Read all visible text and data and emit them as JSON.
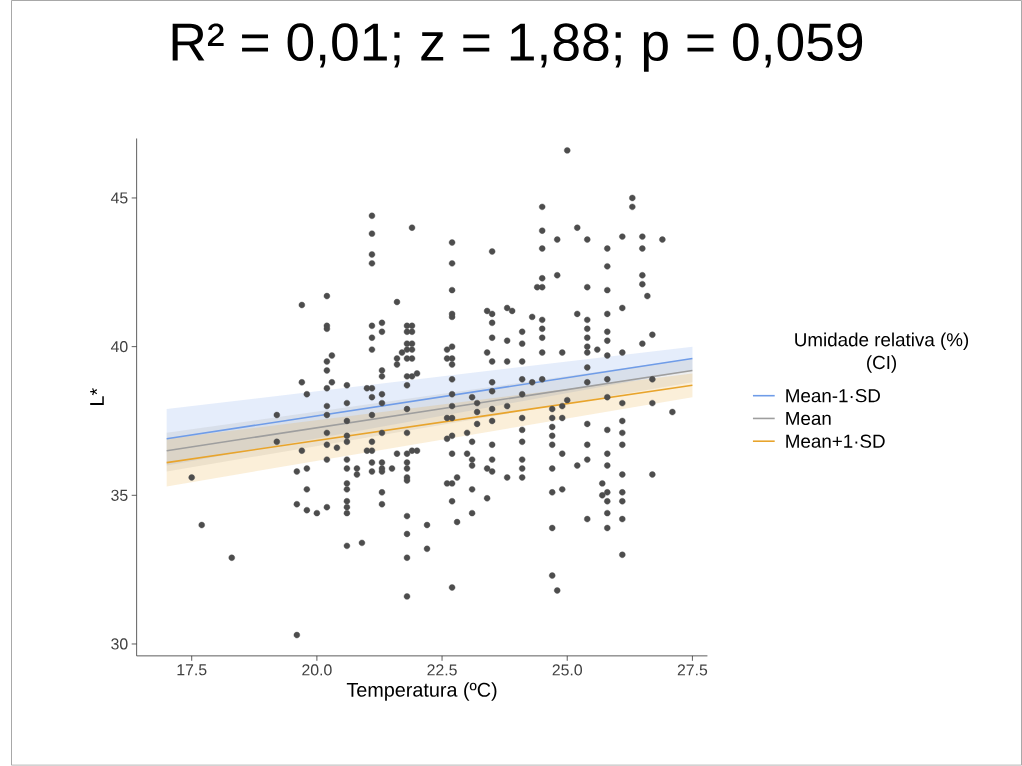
{
  "chart_data": {
    "type": "scatter",
    "title": "R² = 0,01; z = 1,88; p = 0,059",
    "xlabel": "Temperatura (ºC)",
    "ylabel": "L*",
    "legend_title": "Umidade relativa (%) (CI)",
    "legend": "right",
    "xlim": [
      16.4,
      27.8
    ],
    "ylim": [
      29.6,
      47.0
    ],
    "xticks": [
      {
        "value": 17.5,
        "label": "17.5"
      },
      {
        "value": 20,
        "label": "20.0"
      },
      {
        "value": 22.5,
        "label": "22.5"
      },
      {
        "value": 25,
        "label": "25.0"
      },
      {
        "value": 27.5,
        "label": "27.5"
      }
    ],
    "yticks": [
      30,
      35,
      40,
      45
    ],
    "series": [
      {
        "type": "scatter",
        "color": "#4d4d4d",
        "marker": "circle",
        "x": [
          17.5,
          17.7,
          18.3,
          19.2,
          19.2,
          19.6,
          19.7,
          19.7,
          19.6,
          19.6,
          19.8,
          19.8,
          19.8,
          19.8,
          20.0,
          19.7,
          20.2,
          20.2,
          20.2,
          20.2,
          20.2,
          20.2,
          20.2,
          20.2,
          20.2,
          20.2,
          20.2,
          20.2,
          20.3,
          20.3,
          20.4,
          20.6,
          20.6,
          20.6,
          20.6,
          20.6,
          20.6,
          20.6,
          20.6,
          20.6,
          20.6,
          20.6,
          20.6,
          20.6,
          20.8,
          20.8,
          20.9,
          21.0,
          21.0,
          21.1,
          21.1,
          21.1,
          21.1,
          21.1,
          21.1,
          21.1,
          21.1,
          21.1,
          21.1,
          21.1,
          21.1,
          21.1,
          21.1,
          21.3,
          21.3,
          21.3,
          21.3,
          21.3,
          21.3,
          21.3,
          21.3,
          21.3,
          21.3,
          21.3,
          21.3,
          21.5,
          21.6,
          21.6,
          21.6,
          21.6,
          21.7,
          21.8,
          21.8,
          21.8,
          21.8,
          21.8,
          21.8,
          21.8,
          21.8,
          21.8,
          21.8,
          21.8,
          21.8,
          21.8,
          21.8,
          21.8,
          21.8,
          21.8,
          21.8,
          21.9,
          21.9,
          21.9,
          21.9,
          21.9,
          21.9,
          21.9,
          21.9,
          22.0,
          22.0,
          22.2,
          22.2,
          22.6,
          22.6,
          22.6,
          22.6,
          22.6,
          22.7,
          22.7,
          22.7,
          22.7,
          22.7,
          22.7,
          22.7,
          22.7,
          22.7,
          22.7,
          22.7,
          22.7,
          22.7,
          22.7,
          22.7,
          22.7,
          22.7,
          22.8,
          22.8,
          23.0,
          23.0,
          23.1,
          23.1,
          23.1,
          23.1,
          23.1,
          23.1,
          23.2,
          23.2,
          23.2,
          23.4,
          23.4,
          23.4,
          23.4,
          23.5,
          23.5,
          23.5,
          23.5,
          23.5,
          23.5,
          23.5,
          23.5,
          23.5,
          23.5,
          23.5,
          23.5,
          23.8,
          23.8,
          23.8,
          23.8,
          23.8,
          23.9,
          24.1,
          24.1,
          24.1,
          24.1,
          24.1,
          24.1,
          24.1,
          24.1,
          24.1,
          24.1,
          24.1,
          24.3,
          24.3,
          24.4,
          24.5,
          24.5,
          24.5,
          24.5,
          24.5,
          24.5,
          24.5,
          24.5,
          24.5,
          24.5,
          24.7,
          24.7,
          24.7,
          24.7,
          24.7,
          24.7,
          24.7,
          24.7,
          24.7,
          24.8,
          24.8,
          24.8,
          24.9,
          24.9,
          24.9,
          24.9,
          24.9,
          25.0,
          25.0,
          25.2,
          25.2,
          25.2,
          25.4,
          25.4,
          25.4,
          25.4,
          25.4,
          25.4,
          25.4,
          25.4,
          25.4,
          25.4,
          25.4,
          25.4,
          25.4,
          25.6,
          25.7,
          25.7,
          25.8,
          25.8,
          25.8,
          25.8,
          25.8,
          25.8,
          25.8,
          25.8,
          25.8,
          25.8,
          25.8,
          25.8,
          25.8,
          25.8,
          25.8,
          25.8,
          26.1,
          26.1,
          26.1,
          26.1,
          26.1,
          26.1,
          26.1,
          26.1,
          26.1,
          26.1,
          26.1,
          26.1,
          26.3,
          26.3,
          26.5,
          26.5,
          26.5,
          26.5,
          26.5,
          26.6,
          26.7,
          26.7,
          26.7,
          26.7,
          26.9,
          27.1
        ],
        "values": [
          35.6,
          34.0,
          32.9,
          37.7,
          36.8,
          30.3,
          41.4,
          38.8,
          35.8,
          34.7,
          38.4,
          35.9,
          35.2,
          34.5,
          34.4,
          36.5,
          41.7,
          40.7,
          40.6,
          39.5,
          39.2,
          38.6,
          38.0,
          37.7,
          37.1,
          36.7,
          36.2,
          34.6,
          39.7,
          38.8,
          36.6,
          38.7,
          38.1,
          37.5,
          37.0,
          36.8,
          36.2,
          35.9,
          35.4,
          35.2,
          34.8,
          34.6,
          34.4,
          33.3,
          35.9,
          35.7,
          33.4,
          38.6,
          36.5,
          44.4,
          43.8,
          43.1,
          42.8,
          40.7,
          40.3,
          39.9,
          38.6,
          38.3,
          37.7,
          36.8,
          36.5,
          36.1,
          35.8,
          40.8,
          40.5,
          39.2,
          39.0,
          38.4,
          38.1,
          37.1,
          36.1,
          35.9,
          35.8,
          35.1,
          34.7,
          35.9,
          41.5,
          39.6,
          39.4,
          36.4,
          39.8,
          38.7,
          37.1,
          36.4,
          40.7,
          40.5,
          40.1,
          39.9,
          39.6,
          39.0,
          37.9,
          36.1,
          35.9,
          35.6,
          35.5,
          34.3,
          33.7,
          32.9,
          31.6,
          44.0,
          40.7,
          40.5,
          40.1,
          39.9,
          39.6,
          39.0,
          36.5,
          39.1,
          36.5,
          34.0,
          33.2,
          39.9,
          39.6,
          37.6,
          36.9,
          35.4,
          43.5,
          42.8,
          41.9,
          41.1,
          41.0,
          40.0,
          39.6,
          39.4,
          38.9,
          38.4,
          38.0,
          37.6,
          37.0,
          36.4,
          35.4,
          34.8,
          31.9,
          34.1,
          35.6,
          37.1,
          36.4,
          38.3,
          36.8,
          36.2,
          36.0,
          35.2,
          34.4,
          38.1,
          37.8,
          37.4,
          34.9,
          41.2,
          39.8,
          35.9,
          43.2,
          41.1,
          40.8,
          40.3,
          39.5,
          38.8,
          38.5,
          37.9,
          37.5,
          36.7,
          36.2,
          35.8,
          41.3,
          40.2,
          39.5,
          35.6,
          38.0,
          41.2,
          40.5,
          40.1,
          39.5,
          38.9,
          38.4,
          37.6,
          37.2,
          36.8,
          36.2,
          35.9,
          35.6,
          41.0,
          38.8,
          42.0,
          44.7,
          43.9,
          43.3,
          42.3,
          42.0,
          40.9,
          40.6,
          40.3,
          39.8,
          38.9,
          37.9,
          37.6,
          37.3,
          37.0,
          36.7,
          35.9,
          35.1,
          33.9,
          32.3,
          43.6,
          42.4,
          31.8,
          39.8,
          38.0,
          37.6,
          36.4,
          35.2,
          38.2,
          46.6,
          44.0,
          41.1,
          36.0,
          43.6,
          42.0,
          40.9,
          40.6,
          40.3,
          40.0,
          39.8,
          39.3,
          38.8,
          37.4,
          36.7,
          36.2,
          34.2,
          39.9,
          35.4,
          35.0,
          43.3,
          42.7,
          41.9,
          41.1,
          40.5,
          40.2,
          39.7,
          38.9,
          38.3,
          37.2,
          36.4,
          36.0,
          35.1,
          34.8,
          34.4,
          33.9,
          43.7,
          41.3,
          39.8,
          38.1,
          37.5,
          37.1,
          36.7,
          35.7,
          35.1,
          34.8,
          34.2,
          33.0,
          45.0,
          44.7,
          43.7,
          43.3,
          42.4,
          42.1,
          40.1,
          41.7,
          40.4,
          38.9,
          38.1,
          35.7,
          43.6,
          37.8
        ]
      },
      {
        "type": "line",
        "name": "Mean-1·SD",
        "color": "#6f9ce8",
        "x": [
          17,
          27.5
        ],
        "values": [
          36.9,
          39.6
        ],
        "lower": [
          36.0,
          39.2
        ],
        "upper": [
          37.9,
          40.0
        ]
      },
      {
        "type": "line",
        "name": "Mean",
        "color": "#9e9e9e",
        "x": [
          17,
          27.5
        ],
        "values": [
          36.5,
          39.2
        ],
        "lower": [
          35.8,
          38.8
        ],
        "upper": [
          37.1,
          39.6
        ]
      },
      {
        "type": "line",
        "name": "Mean+1·SD",
        "color": "#e8a42c",
        "x": [
          17,
          27.5
        ],
        "values": [
          36.1,
          38.7
        ],
        "lower": [
          35.3,
          38.3
        ],
        "upper": [
          36.9,
          39.1
        ]
      }
    ]
  }
}
